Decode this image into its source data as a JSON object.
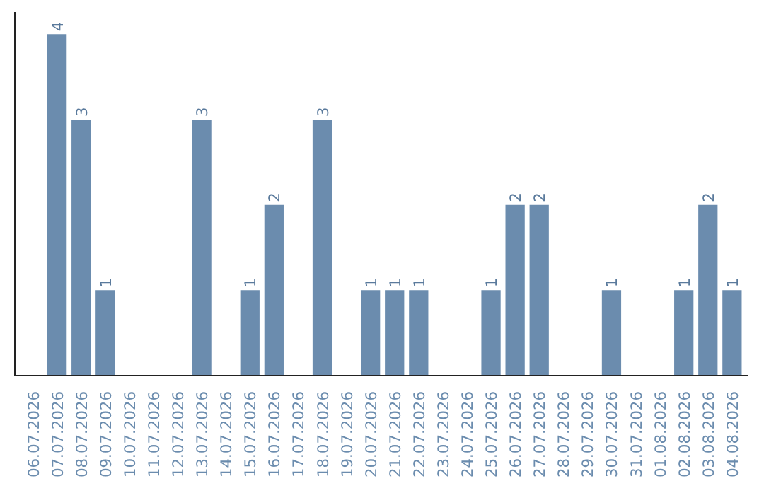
{
  "chart_data": {
    "type": "bar",
    "relative": false,
    "grid": false,
    "tick_labels": "x",
    "color": "#6b8cae",
    "categories": [
      "06.07.2026",
      "07.07.2026",
      "08.07.2026",
      "09.07.2026",
      "10.07.2026",
      "11.07.2026",
      "12.07.2026",
      "13.07.2026",
      "14.07.2026",
      "15.07.2026",
      "16.07.2026",
      "17.07.2026",
      "18.07.2026",
      "19.07.2026",
      "20.07.2026",
      "21.07.2026",
      "22.07.2026",
      "23.07.2026",
      "24.07.2026",
      "25.07.2026",
      "26.07.2026",
      "27.07.2026",
      "28.07.2026",
      "29.07.2026",
      "30.07.2026",
      "31.07.2026",
      "01.08.2026",
      "02.08.2026",
      "03.08.2026",
      "04.08.2026"
    ],
    "values": [
      0,
      4,
      3,
      1,
      0,
      0,
      0,
      3,
      0,
      1,
      2,
      0,
      3,
      0,
      1,
      1,
      1,
      0,
      0,
      1,
      2,
      2,
      0,
      0,
      1,
      0,
      0,
      1,
      2,
      1
    ],
    "value_labels": [
      null,
      "4",
      "3",
      "1",
      null,
      null,
      null,
      "3",
      null,
      "1",
      "2",
      null,
      "3",
      null,
      "1",
      "1",
      "1",
      null,
      null,
      "1",
      "2",
      "2",
      null,
      null,
      "1",
      null,
      null,
      "1",
      "2",
      "1"
    ]
  }
}
